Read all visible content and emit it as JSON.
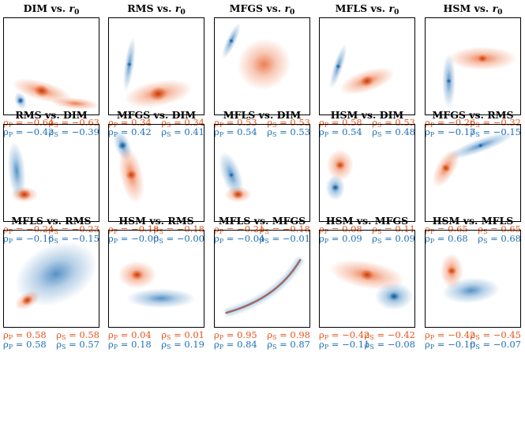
{
  "colors": {
    "orange": "#e8541a",
    "blue": "#1f6fb4"
  },
  "chart_data": [
    {
      "type": "heatmap",
      "title": "DIM vs. ",
      "title_var": "r",
      "title_sub": "0",
      "orange": {
        "rho_p": "−0.64",
        "rho_s": "−0.63"
      },
      "blue": {
        "rho_p": "−0.42",
        "rho_s": "−0.39"
      },
      "blobs": [
        {
          "color": "orange",
          "cx": 0.4,
          "cy": 0.75,
          "rx": 0.32,
          "ry": 0.1,
          "rot": 15,
          "core": 0.08
        },
        {
          "color": "orange",
          "cx": 0.75,
          "cy": 0.88,
          "rx": 0.25,
          "ry": 0.06,
          "rot": 5,
          "core": 0
        },
        {
          "color": "blue",
          "cx": 0.18,
          "cy": 0.85,
          "rx": 0.06,
          "ry": 0.09,
          "rot": -20,
          "core": 0.04
        }
      ]
    },
    {
      "type": "heatmap",
      "title": "RMS vs. ",
      "title_var": "r",
      "title_sub": "0",
      "orange": {
        "rho_p": "0.34",
        "rho_s": "0.34"
      },
      "blue": {
        "rho_p": "0.42",
        "rho_s": "0.41"
      },
      "blobs": [
        {
          "color": "blue",
          "cx": 0.22,
          "cy": 0.48,
          "rx": 0.05,
          "ry": 0.28,
          "rot": 8,
          "core": 0.03
        },
        {
          "color": "orange",
          "cx": 0.52,
          "cy": 0.78,
          "rx": 0.36,
          "ry": 0.13,
          "rot": -10,
          "core": 0.09
        }
      ]
    },
    {
      "type": "heatmap",
      "title": "MFGS vs. ",
      "title_var": "r",
      "title_sub": "0",
      "orange": {
        "rho_p": "0.53",
        "rho_s": "0.53"
      },
      "blue": {
        "rho_p": "0.54",
        "rho_s": "0.53"
      },
      "blobs": [
        {
          "color": "blue",
          "cx": 0.18,
          "cy": 0.24,
          "rx": 0.05,
          "ry": 0.2,
          "rot": 25,
          "core": 0.03
        },
        {
          "color": "orange",
          "cx": 0.52,
          "cy": 0.48,
          "rx": 0.28,
          "ry": 0.26,
          "rot": -25,
          "core": 0
        }
      ]
    },
    {
      "type": "heatmap",
      "title": "MFLS vs. ",
      "title_var": "r",
      "title_sub": "0",
      "orange": {
        "rho_p": "0.58",
        "rho_s": "0.53"
      },
      "blue": {
        "rho_p": "0.54",
        "rho_s": "0.48"
      },
      "blobs": [
        {
          "color": "blue",
          "cx": 0.2,
          "cy": 0.5,
          "rx": 0.05,
          "ry": 0.24,
          "rot": 18,
          "core": 0.03
        },
        {
          "color": "orange",
          "cx": 0.5,
          "cy": 0.65,
          "rx": 0.3,
          "ry": 0.11,
          "rot": -18,
          "core": 0.07
        }
      ]
    },
    {
      "type": "heatmap",
      "title": "HSM vs. ",
      "title_var": "r",
      "title_sub": "0",
      "orange": {
        "rho_p": "−0.26",
        "rho_s": "−0.32"
      },
      "blue": {
        "rho_p": "−0.17",
        "rho_s": "−0.15"
      },
      "blobs": [
        {
          "color": "orange",
          "cx": 0.6,
          "cy": 0.42,
          "rx": 0.36,
          "ry": 0.12,
          "rot": 0,
          "core": 0.05
        },
        {
          "color": "blue",
          "cx": 0.25,
          "cy": 0.65,
          "rx": 0.07,
          "ry": 0.28,
          "rot": 0,
          "core": 0.03
        }
      ]
    },
    {
      "type": "heatmap",
      "title": "RMS vs. DIM",
      "title_var": "",
      "title_sub": "",
      "orange": {
        "rho_p": "−0.24",
        "rho_s": "−0.23"
      },
      "blue": {
        "rho_p": "−0.16",
        "rho_s": "−0.15"
      },
      "blobs": [
        {
          "color": "blue",
          "cx": 0.14,
          "cy": 0.48,
          "rx": 0.09,
          "ry": 0.3,
          "rot": -5,
          "core": 0
        },
        {
          "color": "orange",
          "cx": 0.22,
          "cy": 0.72,
          "rx": 0.14,
          "ry": 0.08,
          "rot": 0,
          "core": 0.07
        }
      ]
    },
    {
      "type": "heatmap",
      "title": "MFGS vs. DIM",
      "title_var": "",
      "title_sub": "",
      "orange": {
        "rho_p": "−0.18",
        "rho_s": "−0.18"
      },
      "blue": {
        "rho_p": "−0.00",
        "rho_s": "−0.00"
      },
      "blobs": [
        {
          "color": "blue",
          "cx": 0.15,
          "cy": 0.22,
          "rx": 0.08,
          "ry": 0.16,
          "rot": -20,
          "core": 0.05
        },
        {
          "color": "orange",
          "cx": 0.24,
          "cy": 0.52,
          "rx": 0.12,
          "ry": 0.3,
          "rot": -12,
          "core": 0.06
        }
      ]
    },
    {
      "type": "heatmap",
      "title": "MFLS vs. DIM",
      "title_var": "",
      "title_sub": "",
      "orange": {
        "rho_p": "−0.21",
        "rho_s": "−0.18"
      },
      "blue": {
        "rho_p": "−0.04",
        "rho_s": "−0.01"
      },
      "blobs": [
        {
          "color": "blue",
          "cx": 0.18,
          "cy": 0.52,
          "rx": 0.1,
          "ry": 0.25,
          "rot": -20,
          "core": 0.03
        },
        {
          "color": "orange",
          "cx": 0.25,
          "cy": 0.72,
          "rx": 0.14,
          "ry": 0.08,
          "rot": 0,
          "core": 0.06
        }
      ]
    },
    {
      "type": "heatmap",
      "title": "HSM vs. DIM",
      "title_var": "",
      "title_sub": "",
      "orange": {
        "rho_p": "0.08",
        "rho_s": "0.11"
      },
      "blue": {
        "rho_p": "0.09",
        "rho_s": "0.09"
      },
      "blobs": [
        {
          "color": "orange",
          "cx": 0.22,
          "cy": 0.42,
          "rx": 0.14,
          "ry": 0.16,
          "rot": 0,
          "core": 0.05
        },
        {
          "color": "blue",
          "cx": 0.17,
          "cy": 0.65,
          "rx": 0.1,
          "ry": 0.13,
          "rot": 0,
          "core": 0.04
        }
      ]
    },
    {
      "type": "heatmap",
      "title": "MFGS vs. RMS",
      "title_var": "",
      "title_sub": "",
      "orange": {
        "rho_p": "0.65",
        "rho_s": "0.65"
      },
      "blue": {
        "rho_p": "0.68",
        "rho_s": "0.68"
      },
      "blobs": [
        {
          "color": "blue",
          "cx": 0.58,
          "cy": 0.22,
          "rx": 0.38,
          "ry": 0.07,
          "rot": -20,
          "core": 0.03
        },
        {
          "color": "orange",
          "cx": 0.22,
          "cy": 0.45,
          "rx": 0.1,
          "ry": 0.22,
          "rot": 30,
          "core": 0.05
        }
      ]
    },
    {
      "type": "heatmap",
      "title": "MFLS vs. RMS",
      "title_var": "",
      "title_sub": "",
      "orange": {
        "rho_p": "0.58",
        "rho_s": "0.58"
      },
      "blue": {
        "rho_p": "0.58",
        "rho_s": "0.57"
      },
      "blobs": [
        {
          "color": "blue",
          "cx": 0.55,
          "cy": 0.45,
          "rx": 0.45,
          "ry": 0.3,
          "rot": -25,
          "core": 0
        },
        {
          "color": "orange",
          "cx": 0.25,
          "cy": 0.72,
          "rx": 0.14,
          "ry": 0.08,
          "rot": -30,
          "core": 0.06
        }
      ]
    },
    {
      "type": "heatmap",
      "title": "HSM vs. RMS",
      "title_var": "",
      "title_sub": "",
      "orange": {
        "rho_p": "0.04",
        "rho_s": "0.01"
      },
      "blue": {
        "rho_p": "0.18",
        "rho_s": "0.19"
      },
      "blobs": [
        {
          "color": "orange",
          "cx": 0.3,
          "cy": 0.46,
          "rx": 0.2,
          "ry": 0.14,
          "rot": 0,
          "core": 0.06
        },
        {
          "color": "blue",
          "cx": 0.55,
          "cy": 0.7,
          "rx": 0.36,
          "ry": 0.1,
          "rot": 0,
          "core": 0
        }
      ]
    },
    {
      "type": "heatmap",
      "title": "MFLS vs. MFGS",
      "title_var": "",
      "title_sub": "",
      "orange": {
        "rho_p": "0.95",
        "rho_s": "0.98"
      },
      "blue": {
        "rho_p": "0.84",
        "rho_s": "0.87"
      },
      "blobs": [],
      "curve": [
        [
          0.12,
          0.85
        ],
        [
          0.45,
          0.76
        ],
        [
          0.72,
          0.6
        ],
        [
          0.9,
          0.3
        ]
      ]
    },
    {
      "type": "heatmap",
      "title": "HSM vs. MFGS",
      "title_var": "",
      "title_sub": "",
      "orange": {
        "rho_p": "−0.42",
        "rho_s": "−0.42"
      },
      "blue": {
        "rho_p": "−0.11",
        "rho_s": "−0.08"
      },
      "blobs": [
        {
          "color": "orange",
          "cx": 0.5,
          "cy": 0.46,
          "rx": 0.4,
          "ry": 0.14,
          "rot": 10,
          "core": 0.07
        },
        {
          "color": "blue",
          "cx": 0.78,
          "cy": 0.68,
          "rx": 0.2,
          "ry": 0.14,
          "rot": 0,
          "core": 0.05
        }
      ]
    },
    {
      "type": "heatmap",
      "title": "HSM vs. MFLS",
      "title_var": "",
      "title_sub": "",
      "orange": {
        "rho_p": "−0.42",
        "rho_s": "−0.45"
      },
      "blue": {
        "rho_p": "−0.10",
        "rho_s": "−0.07"
      },
      "blobs": [
        {
          "color": "orange",
          "cx": 0.28,
          "cy": 0.42,
          "rx": 0.12,
          "ry": 0.18,
          "rot": 0,
          "core": 0.05
        },
        {
          "color": "blue",
          "cx": 0.48,
          "cy": 0.62,
          "rx": 0.3,
          "ry": 0.13,
          "rot": -5,
          "core": 0
        }
      ]
    }
  ]
}
